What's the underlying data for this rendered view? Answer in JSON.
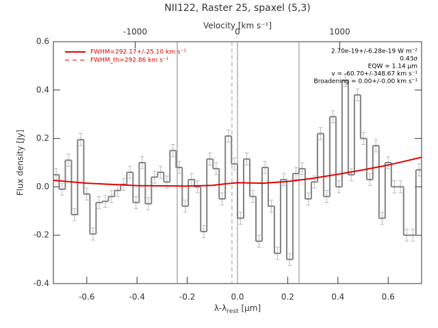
{
  "chart_data": {
    "type": "step",
    "title": "NII122, Raster 25, spaxel (5,3)",
    "xlabel": [
      "λ-λ",
      "rest",
      " [μm]"
    ],
    "ylabel": "Flux density [Jy]",
    "x2label": "Velocity [km s⁻¹]",
    "xlim": [
      -0.733,
      0.733
    ],
    "ylim": [
      -0.4,
      0.6
    ],
    "x2lim": [
      -1800,
      1800
    ],
    "xticks": [
      -0.6,
      -0.4,
      -0.2,
      {
        "value": 0,
        "label": "0.0"
      },
      0.2,
      0.4,
      0.6
    ],
    "yticks": [
      -0.4,
      -0.2,
      {
        "value": 0,
        "label": "0.0"
      },
      0.2,
      0.4,
      0.6
    ],
    "x2ticks": [
      -1000,
      0,
      1000
    ],
    "series": [
      {
        "name": "data",
        "color": "#808080",
        "x": [
          -0.722,
          -0.698,
          -0.673,
          -0.649,
          -0.624,
          -0.6,
          -0.575,
          -0.551,
          -0.526,
          -0.502,
          -0.477,
          -0.453,
          -0.428,
          -0.404,
          -0.379,
          -0.355,
          -0.33,
          -0.306,
          -0.281,
          -0.257,
          -0.232,
          -0.208,
          -0.183,
          -0.159,
          -0.134,
          -0.11,
          -0.085,
          -0.061,
          -0.036,
          -0.012,
          0.012,
          0.037,
          0.061,
          0.086,
          0.11,
          0.135,
          0.159,
          0.184,
          0.208,
          0.233,
          0.257,
          0.282,
          0.306,
          0.331,
          0.355,
          0.38,
          0.404,
          0.429,
          0.453,
          0.478,
          0.502,
          0.527,
          0.551,
          0.576,
          0.6,
          0.625,
          0.649,
          0.674,
          0.698,
          0.723
        ],
        "values": [
          0.05,
          -0.01,
          0.11,
          -0.115,
          0.195,
          -0.03,
          -0.195,
          -0.065,
          -0.06,
          -0.04,
          -0.015,
          0.01,
          0.06,
          -0.065,
          0.1,
          -0.07,
          0.04,
          0.06,
          0.02,
          0.15,
          0.08,
          -0.08,
          0.03,
          0.0,
          -0.185,
          0.115,
          0.075,
          -0.05,
          0.21,
          0.095,
          -0.13,
          0.115,
          -0.04,
          -0.225,
          0.08,
          -0.08,
          -0.275,
          0.03,
          -0.3,
          0.055,
          0.075,
          -0.05,
          0.02,
          0.22,
          -0.04,
          0.29,
          0.0,
          0.44,
          0.05,
          0.38,
          0.2,
          0.03,
          0.17,
          -0.13,
          0.1,
          0.0,
          0.0,
          -0.2,
          -0.2,
          0.07
        ],
        "error": 0.025
      },
      {
        "name": "fit",
        "color": "#e00000",
        "x": [
          -0.733,
          -0.6,
          -0.4,
          -0.2,
          -0.1,
          -0.05,
          0,
          0.05,
          0.1,
          0.2,
          0.3,
          0.4,
          0.5,
          0.6,
          0.733
        ],
        "values": [
          0.027,
          0.015,
          0.005,
          0.003,
          0.006,
          0.012,
          0.017,
          0.016,
          0.015,
          0.022,
          0.035,
          0.052,
          0.07,
          0.09,
          0.122
        ]
      }
    ],
    "vlines": [
      -0.24,
      0,
      0.245
    ],
    "dashed_vline": -0.022,
    "legend": [
      "FWHM=292.17+/-25.10 km s⁻¹",
      "FWHM_th=292.86 km s⁻¹"
    ],
    "annotations": [
      "2.70e-19+/-6.28e-19 W m⁻²",
      "0.43σ",
      "EQW = 1.14 μm",
      "v = -60.70+/-348.67 km s⁻¹",
      "Broadening = 0.00+/-0.00 km s⁻¹"
    ]
  }
}
